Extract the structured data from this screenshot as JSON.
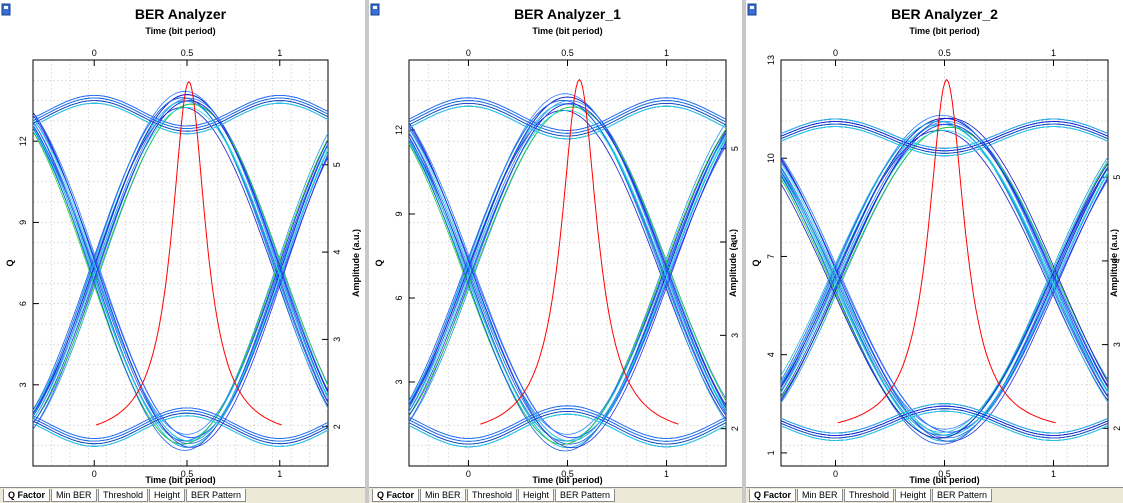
{
  "tabs": [
    "Q Factor",
    "Min BER",
    "Threshold",
    "Height",
    "BER Pattern"
  ],
  "colors": {
    "q_curve": "#ff0000",
    "eye_dark": "#1a1acc",
    "eye_mid": "#2a7fff",
    "eye_light": "#22dddd",
    "eye_green": "#22cc33",
    "grid": "#c8c8c8"
  },
  "chart_data": [
    {
      "type": "line",
      "title": "BER Analyzer",
      "xlabel": "Time (bit period)",
      "ylabel": "Q",
      "y2label": "Amplitude (a.u.)",
      "xlim": [
        -0.33,
        1.26
      ],
      "ylim": [
        0,
        15
      ],
      "y2lim": [
        1.55,
        6.2
      ],
      "xticks": [
        0,
        0.5,
        1
      ],
      "yticks": [
        3,
        6,
        9,
        12
      ],
      "y2ticks": [
        2,
        3,
        4,
        5
      ],
      "q_factor": {
        "peak_x": 0.51,
        "peak_q": 14.2,
        "width": 0.11
      },
      "eye": {
        "high": 5.75,
        "low": 1.82,
        "crossing_left_x": 0.0,
        "crossing_right_x": 1.0,
        "crossing_level": 3.73,
        "traces": 14
      }
    },
    {
      "type": "line",
      "title": "BER Analyzer_1",
      "xlabel": "Time (bit period)",
      "ylabel": "Q",
      "y2label": "Amplitude (a.u.)",
      "xlim": [
        -0.3,
        1.3
      ],
      "ylim": [
        0,
        14.5
      ],
      "y2lim": [
        1.6,
        5.95
      ],
      "xticks": [
        0,
        0.5,
        1
      ],
      "yticks": [
        3,
        6,
        9,
        12
      ],
      "y2ticks": [
        2,
        3,
        4,
        5
      ],
      "q_factor": {
        "peak_x": 0.56,
        "peak_q": 13.8,
        "width": 0.11
      },
      "eye": {
        "high": 5.5,
        "low": 1.85,
        "crossing_left_x": 0.0,
        "crossing_right_x": 1.0,
        "crossing_level": 3.62,
        "traces": 14
      }
    },
    {
      "type": "line",
      "title": "BER Analyzer_2",
      "xlabel": "Time (bit period)",
      "ylabel": "Q",
      "y2label": "Amplitude (a.u.)",
      "xlim": [
        -0.25,
        1.25
      ],
      "ylim": [
        0.6,
        13
      ],
      "y2lim": [
        1.55,
        6.4
      ],
      "xticks": [
        0,
        0.5,
        1
      ],
      "yticks": [
        1,
        4,
        7,
        10,
        13
      ],
      "y2ticks": [
        2,
        3,
        4,
        5
      ],
      "q_factor": {
        "peak_x": 0.51,
        "peak_q": 12.4,
        "width": 0.1
      },
      "eye": {
        "high": 5.65,
        "low": 1.9,
        "crossing_left_x": 0.0,
        "crossing_right_x": 1.0,
        "crossing_level": 3.65,
        "traces": 16
      }
    }
  ]
}
